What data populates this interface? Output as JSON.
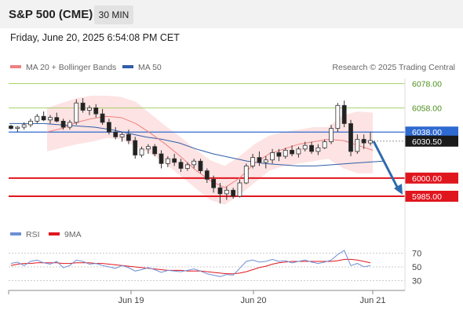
{
  "header": {
    "title": "S&P 500 (CME)",
    "timeframe": "30 MIN",
    "datetime": "Friday, June 20, 2025 6:54:08 PM CET"
  },
  "legend": {
    "ma20": "MA 20 + Bollinger Bands",
    "ma50": "MA 50",
    "copyright": "Research © 2025 Trading Central",
    "rsi": "RSI",
    "rsi_ma": "9MA"
  },
  "colors": {
    "ma20": "#f08080",
    "ma50": "#2f5da8",
    "bollinger_fill": "#fde0e0",
    "resistance": "#8dc63f",
    "support": "#e0161f",
    "pivot": "#2f6ad0",
    "last_price": "#1a1a1a",
    "arrow": "#2f6aad",
    "rsi": "#6f8fd6",
    "rsi_ma": "#e0161f",
    "header_bg": "#f2f2f2"
  },
  "chart_data": [
    {
      "type": "candlestick",
      "title": "S&P 500 (CME)",
      "timeframe": "30 MIN",
      "x_tick_labels": [
        "Jun 19",
        "Jun 20",
        "Jun 21"
      ],
      "ylim": [
        5972,
        6082
      ],
      "levels": [
        {
          "name": "resistance",
          "value": 6078.0,
          "label": "6078.00",
          "style": "resistance"
        },
        {
          "name": "resistance",
          "value": 6058.0,
          "label": "6058.00",
          "style": "resistance"
        },
        {
          "name": "pivot",
          "value": 6038.0,
          "label": "6038.00",
          "style": "pivot"
        },
        {
          "name": "last",
          "value": 6030.5,
          "label": "6030.50",
          "style": "last"
        },
        {
          "name": "support",
          "value": 6000.0,
          "label": "6000.00",
          "style": "support"
        },
        {
          "name": "support",
          "value": 5985.0,
          "label": "5985.00",
          "style": "support"
        }
      ],
      "series": [
        {
          "name": "MA 20 + Bollinger Bands",
          "type": "line",
          "values": [
            6038,
            6041,
            6046,
            6049,
            6051,
            6050,
            6045,
            6037,
            6028,
            6018,
            6007,
            5998,
            5992,
            6000,
            6012,
            6020,
            6024,
            6028,
            6030,
            6032,
            6031,
            6027,
            6023
          ]
        },
        {
          "name": "Bollinger upper",
          "type": "band",
          "values": [
            6058,
            6062,
            6066,
            6068,
            6068,
            6067,
            6063,
            6053,
            6043,
            6034,
            6024,
            6015,
            6010,
            6018,
            6028,
            6035,
            6038,
            6040,
            6042,
            6042,
            6052,
            6055,
            6054
          ]
        },
        {
          "name": "Bollinger lower",
          "type": "band",
          "values": [
            6022,
            6025,
            6028,
            6030,
            6033,
            6032,
            6026,
            6020,
            6012,
            6002,
            5992,
            5982,
            5978,
            5986,
            5996,
            6006,
            6010,
            6012,
            6014,
            6016,
            6008,
            6004,
            6004
          ]
        },
        {
          "name": "MA 50",
          "type": "line",
          "values": [
            6045,
            6045,
            6045,
            6044,
            6043,
            6042,
            6040,
            6037,
            6034,
            6032,
            6029,
            6024,
            6020,
            6017,
            6014,
            6012,
            6011,
            6010,
            6010,
            6011,
            6012,
            6013,
            6014
          ]
        }
      ],
      "candles_ohlc": [
        [
          6043,
          6044,
          6040,
          6041
        ],
        [
          6041,
          6043,
          6038,
          6042
        ],
        [
          6042,
          6046,
          6040,
          6044
        ],
        [
          6044,
          6049,
          6042,
          6047
        ],
        [
          6047,
          6053,
          6045,
          6051
        ],
        [
          6051,
          6055,
          6047,
          6048
        ],
        [
          6048,
          6052,
          6045,
          6050
        ],
        [
          6050,
          6054,
          6046,
          6047
        ],
        [
          6047,
          6049,
          6040,
          6042
        ],
        [
          6042,
          6048,
          6040,
          6046
        ],
        [
          6046,
          6065,
          6044,
          6062
        ],
        [
          6062,
          6066,
          6054,
          6056
        ],
        [
          6056,
          6060,
          6052,
          6058
        ],
        [
          6058,
          6061,
          6050,
          6053
        ],
        [
          6053,
          6057,
          6044,
          6046
        ],
        [
          6046,
          6049,
          6036,
          6038
        ],
        [
          6038,
          6042,
          6032,
          6034
        ],
        [
          6034,
          6038,
          6030,
          6036
        ],
        [
          6036,
          6040,
          6028,
          6031
        ],
        [
          6031,
          6034,
          6016,
          6019
        ],
        [
          6019,
          6026,
          6017,
          6024
        ],
        [
          6024,
          6028,
          6020,
          6026
        ],
        [
          6026,
          6028,
          6018,
          6020
        ],
        [
          6020,
          6023,
          6008,
          6012
        ],
        [
          6012,
          6018,
          6009,
          6016
        ],
        [
          6016,
          6020,
          6010,
          6013
        ],
        [
          6013,
          6016,
          6005,
          6008
        ],
        [
          6008,
          6013,
          6006,
          6011
        ],
        [
          6011,
          6016,
          6008,
          6014
        ],
        [
          6014,
          6016,
          6004,
          6006
        ],
        [
          6006,
          6008,
          5996,
          5999
        ],
        [
          5999,
          6002,
          5988,
          5992
        ],
        [
          5992,
          5996,
          5979,
          5987
        ],
        [
          5987,
          5993,
          5982,
          5990
        ],
        [
          5990,
          5992,
          5983,
          5985
        ],
        [
          5985,
          5999,
          5984,
          5996
        ],
        [
          5996,
          6012,
          5995,
          6010
        ],
        [
          6010,
          6020,
          6008,
          6017
        ],
        [
          6017,
          6022,
          6010,
          6013
        ],
        [
          6013,
          6018,
          6008,
          6015
        ],
        [
          6015,
          6024,
          6012,
          6021
        ],
        [
          6021,
          6024,
          6014,
          6018
        ],
        [
          6018,
          6025,
          6016,
          6023
        ],
        [
          6023,
          6027,
          6018,
          6020
        ],
        [
          6020,
          6026,
          6017,
          6024
        ],
        [
          6024,
          6030,
          6022,
          6027
        ],
        [
          6027,
          6030,
          6020,
          6022
        ],
        [
          6022,
          6028,
          6019,
          6025
        ],
        [
          6025,
          6032,
          6024,
          6030
        ],
        [
          6030,
          6044,
          6028,
          6041
        ],
        [
          6041,
          6062,
          6038,
          6060
        ],
        [
          6060,
          6064,
          6042,
          6045
        ],
        [
          6045,
          6048,
          6018,
          6022
        ],
        [
          6022,
          6036,
          6020,
          6032
        ],
        [
          6032,
          6036,
          6024,
          6029
        ],
        [
          6029,
          6038,
          6027,
          6031
        ]
      ]
    },
    {
      "type": "line",
      "title": "RSI",
      "ylim": [
        20,
        80
      ],
      "y_ticks": [
        70,
        50,
        30
      ],
      "series": [
        {
          "name": "RSI",
          "values": [
            55,
            57,
            52,
            58,
            60,
            56,
            54,
            58,
            49,
            52,
            60,
            58,
            54,
            55,
            52,
            50,
            48,
            52,
            49,
            44,
            46,
            49,
            46,
            42,
            45,
            44,
            43,
            45,
            47,
            44,
            40,
            38,
            36,
            39,
            38,
            48,
            58,
            60,
            57,
            58,
            61,
            58,
            59,
            56,
            58,
            60,
            57,
            55,
            57,
            60,
            68,
            74,
            52,
            55,
            50,
            52
          ]
        },
        {
          "name": "9MA",
          "values": [
            52,
            54,
            55,
            55,
            56,
            56,
            56,
            56,
            55,
            55,
            56,
            56,
            56,
            55,
            55,
            54,
            53,
            52,
            51,
            50,
            49,
            48,
            47,
            46,
            45,
            45,
            45,
            44,
            44,
            44,
            43,
            42,
            41,
            40,
            40,
            41,
            43,
            46,
            49,
            51,
            54,
            56,
            57,
            58,
            58,
            58,
            58,
            58,
            58,
            58,
            59,
            61,
            61,
            60,
            58,
            56
          ]
        }
      ]
    }
  ]
}
